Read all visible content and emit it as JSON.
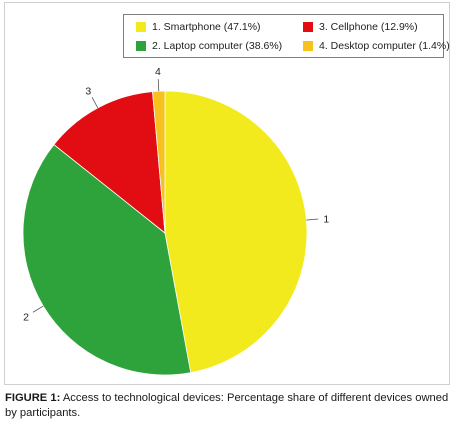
{
  "chart_data": {
    "type": "pie",
    "categories": [
      "1. Smartphone (47.1%)",
      "2. Laptop computer (38.6%)",
      "3. Cellphone (12.9%)",
      "4. Desktop computer (1.4%)"
    ],
    "slice_labels": [
      "1",
      "2",
      "3",
      "4"
    ],
    "values": [
      47.1,
      38.6,
      12.9,
      1.4
    ],
    "colors": [
      "#f2ea1c",
      "#2fa33b",
      "#e20d12",
      "#f7c11e"
    ],
    "legend": {
      "placement": "top-right"
    }
  },
  "caption": {
    "label": "FIGURE 1:",
    "text": " Access to technological devices: Percentage share of different devices owned by participants."
  }
}
